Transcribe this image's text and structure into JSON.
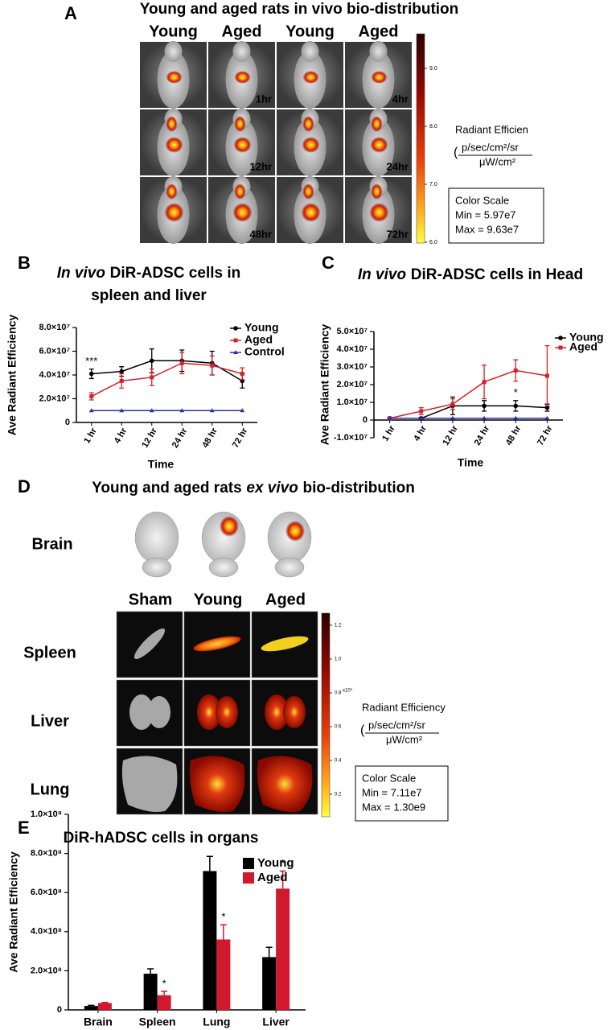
{
  "panel_a": {
    "label": "A",
    "title": "Young and aged rats in vivo bio-distribution",
    "columns": [
      "Young",
      "Aged",
      "Young",
      "Aged"
    ],
    "time_labels": [
      [
        "1hr",
        "4hr"
      ],
      [
        "12hr",
        "24hr"
      ],
      [
        "48hr",
        "72hr"
      ]
    ],
    "colorbar_ticks": [
      "9.0",
      "8.0",
      "7.0",
      "6.0"
    ],
    "units_title": "Radiant Efficien",
    "units_numerator": "p/sec/cm²/sr",
    "units_denominator": "μW/cm²",
    "scale_title": "Color Scale",
    "scale_min": "Min = 5.97e7",
    "scale_max": "Max = 9.63e7"
  },
  "panel_d": {
    "label": "D",
    "title_before": "Young and aged rats",
    "title_italic": "ex vivo",
    "title_after": "bio-distribution",
    "brain_label": "Brain",
    "columns": [
      "Sham",
      "Young",
      "Aged"
    ],
    "rows": [
      "Spleen",
      "Liver",
      "Lung"
    ],
    "colorbar_ticks": [
      "1.2",
      "1.0",
      "0.8",
      "0.6",
      "0.4",
      "0.2"
    ],
    "colorbar_exponent": "x10⁹",
    "units_title": "Radiant Efficiency",
    "units_numerator": "p/sec/cm²/sr",
    "units_denominator": "μW/cm²",
    "scale_title": "Color Scale",
    "scale_min": "Min = 7.11e7",
    "scale_max": "Max = 1.30e9"
  },
  "chart_data": [
    {
      "type": "line",
      "label": "B",
      "title_italic": "In vivo",
      "title": "DiR-ADSC cells in",
      "title_line2": "spleen and liver",
      "x_label": "Time",
      "y_label": "Ave Radiant Efficiency",
      "categories": [
        "1 hr",
        "4 hr",
        "12 hr",
        "24 hr",
        "48 hr",
        "72 hr"
      ],
      "series": [
        {
          "name": "Young",
          "color": "#000000",
          "marker": "circle",
          "values": [
            41000000,
            43000000,
            52000000,
            52000000,
            50000000,
            35000000
          ],
          "errors": [
            4000000,
            4000000,
            10000000,
            9000000,
            10000000,
            6000000
          ]
        },
        {
          "name": "Aged",
          "color": "#d6202a",
          "marker": "square",
          "values": [
            22000000,
            35000000,
            38000000,
            50000000,
            48000000,
            41000000
          ],
          "errors": [
            3000000,
            6000000,
            7000000,
            9000000,
            8000000,
            5000000
          ]
        },
        {
          "name": "Control",
          "color": "#2f2fa8",
          "marker": "triangle",
          "values": [
            10000000,
            10000000,
            10000000,
            10000000,
            10000000,
            10000000
          ]
        }
      ],
      "annotations": [
        {
          "text": "***",
          "category": "1 hr"
        }
      ],
      "ylim": [
        0,
        80000000
      ],
      "yticks": [
        0,
        {
          "value": 20000000,
          "label": "2.0×10⁷"
        },
        {
          "value": 40000000,
          "label": "4.0×10⁷"
        },
        {
          "value": 60000000,
          "label": "6.0×10⁷"
        },
        {
          "value": 80000000,
          "label": "8.0×10⁷"
        }
      ],
      "grid": false
    },
    {
      "type": "line",
      "label": "C",
      "title_italic": "In vivo",
      "title": "DiR-ADSC cells in Head",
      "x_label": "Time",
      "y_label": "Ave Radiant Efficiency",
      "categories": [
        "1 hr",
        "4 hr",
        "12 hr",
        "24 hr",
        "48 hr",
        "72 hr"
      ],
      "series": [
        {
          "name": "Young",
          "color": "#000000",
          "marker": "circle",
          "values": [
            1000000,
            1000000,
            8000000,
            8000000,
            8000000,
            7000000
          ],
          "errors": [
            500000,
            500000,
            5000000,
            3000000,
            3000000,
            2000000
          ]
        },
        {
          "name": "Aged",
          "color": "#d6202a",
          "marker": "square",
          "values": [
            1000000,
            5000000,
            9000000,
            21500000,
            28000000,
            25000000
          ],
          "errors": [
            500000,
            2000000,
            3000000,
            9500000,
            6000000,
            17000000
          ]
        },
        {
          "color": "#2f2fa8",
          "marker": "triangle",
          "values": [
            1000000,
            1000000,
            1000000,
            1000000,
            1000000,
            1000000
          ]
        }
      ],
      "annotations": [
        {
          "text": "*",
          "category": "48 hr"
        }
      ],
      "ylim": [
        -10000000,
        50000000
      ],
      "yticks": [
        {
          "value": -10000000,
          "label": "-1.0×10⁷"
        },
        0,
        {
          "value": 10000000,
          "label": "1.0×10⁷"
        },
        {
          "value": 20000000,
          "label": "2.0×10⁷"
        },
        {
          "value": 30000000,
          "label": "3.0×10⁷"
        },
        {
          "value": 40000000,
          "label": "4.0×10⁷"
        },
        {
          "value": 50000000,
          "label": "5.0×10⁷"
        }
      ],
      "grid": false
    },
    {
      "type": "bar",
      "label": "E",
      "title": "DiR-hADSC cells in organs",
      "y_label": "Ave Radiant Efficiency",
      "categories": [
        "Brain",
        "Spleen",
        "Lung",
        "Liver"
      ],
      "series": [
        {
          "name": "Young",
          "color": "#000000",
          "values": [
            20000000,
            185000000,
            710000000,
            270000000
          ],
          "errors": [
            3000000,
            25000000,
            75000000,
            50000000
          ]
        },
        {
          "name": "Aged",
          "color": "#d0182f",
          "values": [
            35000000,
            75000000,
            360000000,
            620000000
          ],
          "errors": [
            3000000,
            20000000,
            75000000,
            90000000
          ]
        }
      ],
      "annotations": [
        {
          "text": "*",
          "category": "Spleen",
          "series": "Aged"
        },
        {
          "text": "*",
          "category": "Lung",
          "series": "Aged"
        },
        {
          "text": "*",
          "category": "Liver",
          "series": "Aged"
        }
      ],
      "ylim": [
        0,
        1000000000
      ],
      "yticks": [
        0,
        {
          "value": 200000000,
          "label": "2.0×10⁸"
        },
        {
          "value": 400000000,
          "label": "4.0×10⁸"
        },
        {
          "value": 600000000,
          "label": "6.0×10⁸"
        },
        {
          "value": 800000000,
          "label": "8.0×10⁸"
        },
        {
          "value": 1000000000,
          "label": "1.0×10⁹"
        }
      ],
      "grid": false
    }
  ]
}
